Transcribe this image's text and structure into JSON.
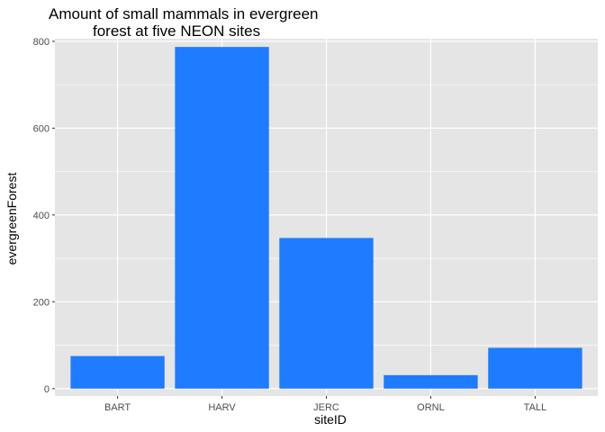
{
  "chart_data": {
    "type": "bar",
    "title_lines": [
      "Amount of small mammals in evergreen",
      "forest at five NEON sites"
    ],
    "xlabel": "siteID",
    "ylabel": "evergreenForest",
    "categories": [
      "BART",
      "HARV",
      "JERC",
      "ORNL",
      "TALL"
    ],
    "values": [
      75,
      787,
      347,
      31,
      94
    ],
    "ylim": [
      -17,
      806
    ],
    "yticks": [
      0,
      200,
      400,
      600,
      800
    ],
    "bar_color": "#1f7bff",
    "panel_color": "#e5e5e5",
    "grid": true
  }
}
